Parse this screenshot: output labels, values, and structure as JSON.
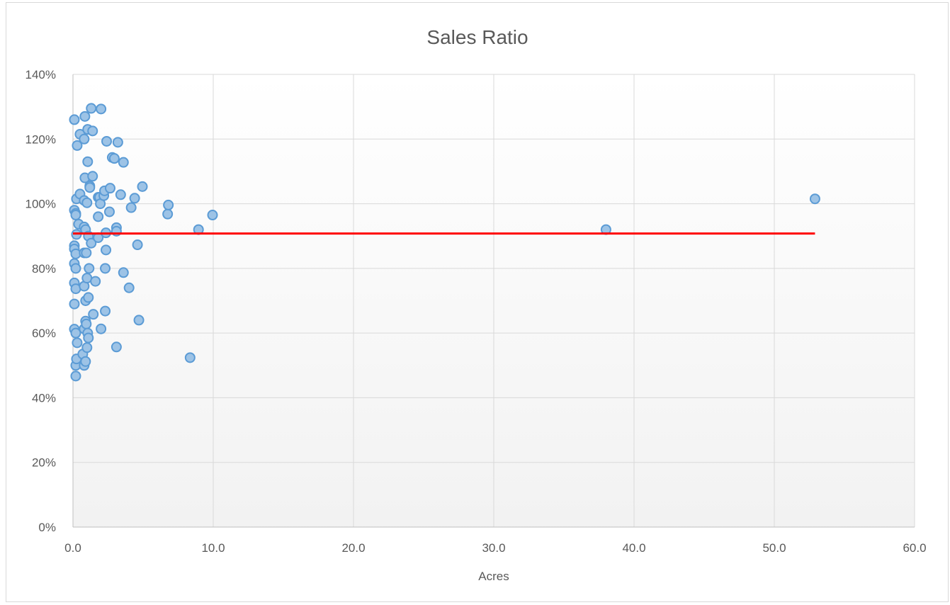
{
  "chart_data": {
    "type": "scatter",
    "title": "Sales Ratio",
    "xlabel": "Acres",
    "ylabel": "",
    "xlim": [
      0,
      60
    ],
    "ylim": [
      0,
      1.4
    ],
    "x_ticks": [
      "0.0",
      "10.0",
      "20.0",
      "30.0",
      "40.0",
      "50.0",
      "60.0"
    ],
    "y_ticks": [
      "0%",
      "20%",
      "40%",
      "60%",
      "80%",
      "100%",
      "120%",
      "140%"
    ],
    "grid": true,
    "legend": "none",
    "marker_fill": "#9dc3e6",
    "marker_stroke": "#5b9bd5",
    "trend_color": "#ff0000",
    "series": [
      {
        "points": [
          [
            0.1,
            1.26
          ],
          [
            0.1,
            0.98
          ],
          [
            0.1,
            0.87
          ],
          [
            0.1,
            0.86
          ],
          [
            0.1,
            0.815
          ],
          [
            0.1,
            0.755
          ],
          [
            0.1,
            0.69
          ],
          [
            0.1,
            0.612
          ],
          [
            0.2,
            0.97
          ],
          [
            0.2,
            0.965
          ],
          [
            0.2,
            0.845
          ],
          [
            0.2,
            0.8
          ],
          [
            0.2,
            0.737
          ],
          [
            0.2,
            0.6
          ],
          [
            0.2,
            0.5
          ],
          [
            0.2,
            0.467
          ],
          [
            0.25,
            1.015
          ],
          [
            0.25,
            0.905
          ],
          [
            0.25,
            0.52
          ],
          [
            0.3,
            1.18
          ],
          [
            0.3,
            0.57
          ],
          [
            0.4,
            0.937
          ],
          [
            0.5,
            1.215
          ],
          [
            0.5,
            1.03
          ],
          [
            0.7,
            0.535
          ],
          [
            0.8,
            1.2
          ],
          [
            0.8,
            1.01
          ],
          [
            0.8,
            0.928
          ],
          [
            0.8,
            0.848
          ],
          [
            0.8,
            0.745
          ],
          [
            0.8,
            0.613
          ],
          [
            0.8,
            0.5
          ],
          [
            0.85,
            1.27
          ],
          [
            0.85,
            1.08
          ],
          [
            0.9,
            0.92
          ],
          [
            0.9,
            0.7
          ],
          [
            0.9,
            0.637
          ],
          [
            0.9,
            0.512
          ],
          [
            0.95,
            0.848
          ],
          [
            0.95,
            0.628
          ],
          [
            1.0,
            1.003
          ],
          [
            1.0,
            0.77
          ],
          [
            1.0,
            0.555
          ],
          [
            1.05,
            1.23
          ],
          [
            1.05,
            1.13
          ],
          [
            1.05,
            0.6
          ],
          [
            1.1,
            0.9
          ],
          [
            1.1,
            0.71
          ],
          [
            1.1,
            0.585
          ],
          [
            1.15,
            0.8
          ],
          [
            1.2,
            1.055
          ],
          [
            1.2,
            1.05
          ],
          [
            1.3,
            1.295
          ],
          [
            1.3,
            0.878
          ],
          [
            1.4,
            1.225
          ],
          [
            1.4,
            1.085
          ],
          [
            1.45,
            0.658
          ],
          [
            1.6,
            0.76
          ],
          [
            1.8,
            1.02
          ],
          [
            1.8,
            0.96
          ],
          [
            1.8,
            0.895
          ],
          [
            1.9,
            1.02
          ],
          [
            1.95,
            1.0
          ],
          [
            2.0,
            1.293
          ],
          [
            2.0,
            0.613
          ],
          [
            2.2,
            1.025
          ],
          [
            2.25,
            1.04
          ],
          [
            2.3,
            0.8
          ],
          [
            2.3,
            0.668
          ],
          [
            2.35,
            0.91
          ],
          [
            2.35,
            0.857
          ],
          [
            2.4,
            1.193
          ],
          [
            2.6,
            0.975
          ],
          [
            2.65,
            1.048
          ],
          [
            2.8,
            1.143
          ],
          [
            2.95,
            1.14
          ],
          [
            3.1,
            0.926
          ],
          [
            3.1,
            0.915
          ],
          [
            3.1,
            0.557
          ],
          [
            3.2,
            1.19
          ],
          [
            3.4,
            1.028
          ],
          [
            3.6,
            1.128
          ],
          [
            3.6,
            0.787
          ],
          [
            4.0,
            0.74
          ],
          [
            4.15,
            0.988
          ],
          [
            4.4,
            1.017
          ],
          [
            4.6,
            0.873
          ],
          [
            4.7,
            0.64
          ],
          [
            4.95,
            1.053
          ],
          [
            6.75,
            0.968
          ],
          [
            6.8,
            0.996
          ],
          [
            8.35,
            0.524
          ],
          [
            8.95,
            0.92
          ],
          [
            9.95,
            0.965
          ],
          [
            38.0,
            0.92
          ],
          [
            52.9,
            1.015
          ]
        ]
      }
    ],
    "trendline": {
      "x": [
        0.0,
        52.9
      ],
      "y": [
        0.908,
        0.908
      ]
    }
  }
}
